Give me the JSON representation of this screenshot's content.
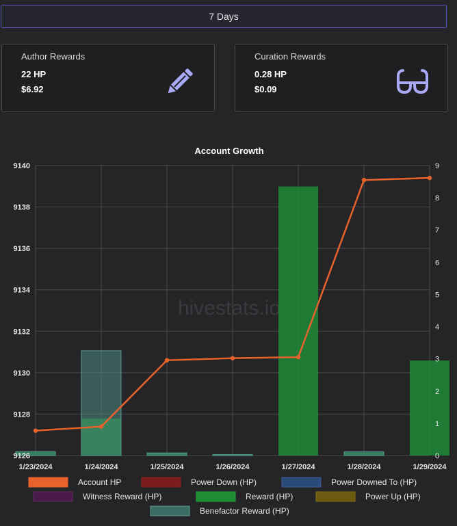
{
  "period_button": {
    "label": "7 Days"
  },
  "cards": {
    "author": {
      "title": "Author Rewards",
      "hp": "22 HP",
      "usd": "$6.92",
      "icon": "pencil-icon"
    },
    "curation": {
      "title": "Curation Rewards",
      "hp": "0.28 HP",
      "usd": "$0.09",
      "icon": "glasses-icon"
    }
  },
  "chart_data": {
    "type": "bar+line",
    "title": "Account Growth",
    "watermark": "hivestats.io",
    "categories": [
      "1/23/2024",
      "1/24/2024",
      "1/25/2024",
      "1/26/2024",
      "1/27/2024",
      "1/28/2024",
      "1/29/2024"
    ],
    "y_left": {
      "min": 9126,
      "max": 9140,
      "ticks": [
        9126,
        9128,
        9130,
        9132,
        9134,
        9136,
        9138,
        9140
      ]
    },
    "y_right": {
      "min": 0,
      "max": 9,
      "ticks": [
        0,
        1,
        2,
        3,
        4,
        5,
        6,
        7,
        8,
        9
      ]
    },
    "grid": true,
    "legend_position": "bottom",
    "series": [
      {
        "name": "Account HP",
        "kind": "line",
        "axis": "left",
        "color": "#e8622c",
        "values": [
          9127.2,
          9127.4,
          9130.6,
          9130.7,
          9130.75,
          9139.3,
          9139.4
        ]
      },
      {
        "name": "Power Down (HP)",
        "kind": "bar",
        "axis": "right",
        "color": "#7a1c1c",
        "values": [
          0,
          0,
          0,
          0,
          0,
          0,
          0
        ]
      },
      {
        "name": "Power Downed To (HP)",
        "kind": "bar",
        "axis": "right",
        "color": "#2a4a7a",
        "values": [
          0,
          0,
          0,
          0,
          0,
          0,
          0
        ]
      },
      {
        "name": "Witness Reward (HP)",
        "kind": "bar",
        "axis": "right",
        "color": "#4a1a4a",
        "values": [
          0,
          0,
          0,
          0,
          0,
          0,
          0
        ]
      },
      {
        "name": "Reward (HP)",
        "kind": "bar",
        "axis": "right",
        "color": "#1e8c32",
        "values": [
          0.12,
          1.15,
          0.08,
          0.02,
          8.35,
          0.1,
          2.95
        ]
      },
      {
        "name": "Power Up (HP)",
        "kind": "bar",
        "axis": "right",
        "color": "#6b5a10",
        "values": [
          0,
          0,
          0,
          0,
          0,
          0,
          0
        ]
      },
      {
        "name": "Benefactor Reward (HP)",
        "kind": "bar",
        "axis": "right",
        "color": "#3d7a6e",
        "values": [
          0.12,
          3.25,
          0.08,
          0.03,
          0,
          0.12,
          0
        ]
      }
    ]
  }
}
